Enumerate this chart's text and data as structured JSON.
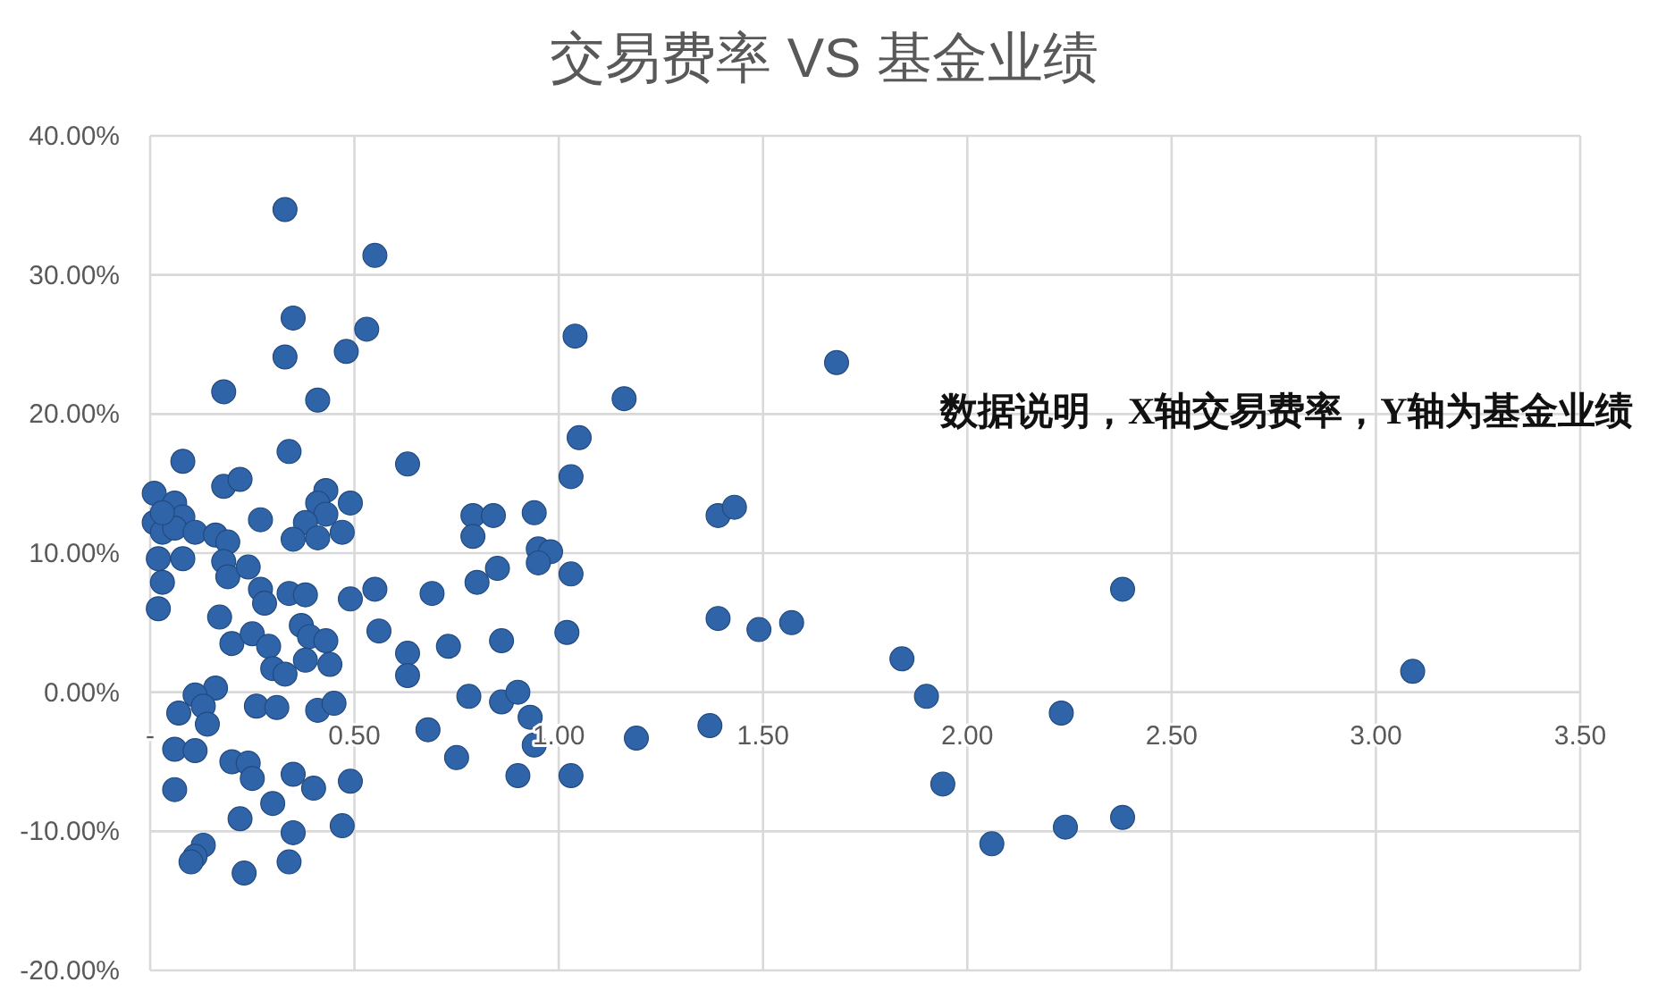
{
  "chart_data": {
    "type": "scatter",
    "title": "交易费率 VS 基金业绩",
    "annotations": [
      "数据说明，X轴交易费率，Y轴为基金业绩"
    ],
    "x": [
      0.33,
      0.55,
      0.35,
      0.53,
      0.33,
      0.48,
      0.18,
      0.41,
      0.34,
      0.08,
      0.63,
      0.18,
      0.22,
      0.01,
      0.43,
      0.41,
      0.49,
      0.06,
      0.27,
      0.43,
      0.38,
      0.08,
      0.01,
      0.03,
      0.06,
      0.11,
      0.16,
      0.19,
      0.03,
      0.35,
      0.41,
      0.47,
      0.02,
      0.08,
      0.18,
      0.03,
      0.19,
      0.24,
      0.02,
      0.27,
      0.28,
      0.34,
      0.38,
      0.49,
      0.55,
      0.69,
      0.17,
      0.37,
      0.39,
      0.43,
      0.2,
      0.25,
      0.29,
      0.38,
      0.44,
      0.3,
      0.33,
      0.56,
      0.63,
      0.73,
      0.63,
      0.16,
      0.11,
      0.13,
      0.07,
      0.14,
      0.26,
      0.31,
      0.41,
      0.45,
      0.06,
      0.11,
      0.2,
      0.24,
      0.25,
      0.35,
      0.4,
      0.49,
      0.06,
      0.3,
      0.22,
      0.35,
      0.47,
      0.13,
      0.11,
      0.1,
      0.34,
      0.23,
      1.04,
      1.16,
      1.68,
      1.05,
      1.03,
      0.79,
      0.84,
      0.79,
      0.94,
      1.39,
      1.43,
      0.95,
      0.98,
      0.95,
      1.03,
      0.85,
      0.8,
      1.39,
      1.49,
      1.57,
      1.02,
      0.86,
      0.78,
      0.86,
      0.9,
      0.93,
      0.68,
      0.94,
      1.19,
      1.37,
      0.75,
      0.9,
      1.03,
      2.38,
      1.84,
      1.9,
      2.23,
      1.94,
      2.06,
      2.24,
      2.38,
      3.09
    ],
    "series": [
      {
        "color": "#2f64a8",
        "values": [
          34.7,
          31.4,
          26.9,
          26.1,
          24.1,
          24.5,
          21.6,
          21.0,
          17.3,
          16.6,
          16.4,
          14.8,
          15.3,
          14.3,
          14.5,
          13.6,
          13.6,
          13.6,
          12.4,
          12.8,
          12.2,
          12.6,
          12.2,
          11.5,
          11.8,
          11.5,
          11.3,
          10.8,
          12.9,
          11.0,
          11.1,
          11.5,
          9.6,
          9.6,
          9.4,
          7.9,
          8.3,
          9.0,
          6.0,
          7.4,
          6.4,
          7.1,
          7.0,
          6.7,
          7.4,
          7.1,
          5.4,
          4.8,
          4.0,
          3.7,
          3.5,
          4.2,
          3.3,
          2.3,
          2.0,
          1.7,
          1.3,
          4.4,
          2.8,
          3.3,
          1.2,
          0.3,
          -0.2,
          -1.0,
          -1.5,
          -2.3,
          -1.0,
          -1.1,
          -1.3,
          -0.8,
          -4.1,
          -4.2,
          -5.0,
          -5.1,
          -6.2,
          -5.9,
          -6.9,
          -6.4,
          -7.0,
          -8.0,
          -9.1,
          -10.1,
          -9.6,
          -11.0,
          -11.8,
          -12.2,
          -12.2,
          -13.0,
          25.6,
          21.1,
          23.7,
          18.3,
          15.5,
          12.7,
          12.7,
          11.2,
          12.9,
          12.7,
          13.3,
          10.3,
          10.1,
          9.3,
          8.5,
          8.9,
          7.9,
          5.3,
          4.5,
          5.0,
          4.3,
          3.7,
          -0.3,
          -0.7,
          0.0,
          -1.8,
          -2.7,
          -3.8,
          -3.3,
          -2.4,
          -4.7,
          -6.0,
          -6.0,
          7.4,
          2.4,
          -0.3,
          -1.5,
          -6.6,
          -10.9,
          -9.7,
          -9.0,
          1.5
        ]
      }
    ],
    "xlim": [
      0,
      3.5
    ],
    "xticks": [
      {
        "value": 0,
        "label": "-"
      },
      {
        "value": 0.5,
        "label": "0.50"
      },
      {
        "value": 1,
        "label": "1.00"
      },
      {
        "value": 1.5,
        "label": "1.50"
      },
      {
        "value": 2,
        "label": "2.00"
      },
      {
        "value": 2.5,
        "label": "2.50"
      },
      {
        "value": 3,
        "label": "3.00"
      },
      {
        "value": 3.5,
        "label": "3.50"
      }
    ],
    "ylim": [
      -20,
      40
    ],
    "yticks": [
      {
        "value": -20,
        "label": "-20.00%"
      },
      {
        "value": -10,
        "label": "-10.00%"
      },
      {
        "value": 0,
        "label": "0.00%"
      },
      {
        "value": 10,
        "label": "10.00%"
      },
      {
        "value": 20,
        "label": "20.00%"
      },
      {
        "value": 30,
        "label": "30.00%"
      },
      {
        "value": 40,
        "label": "40.00%"
      }
    ],
    "grid": true,
    "marker": "circle"
  }
}
